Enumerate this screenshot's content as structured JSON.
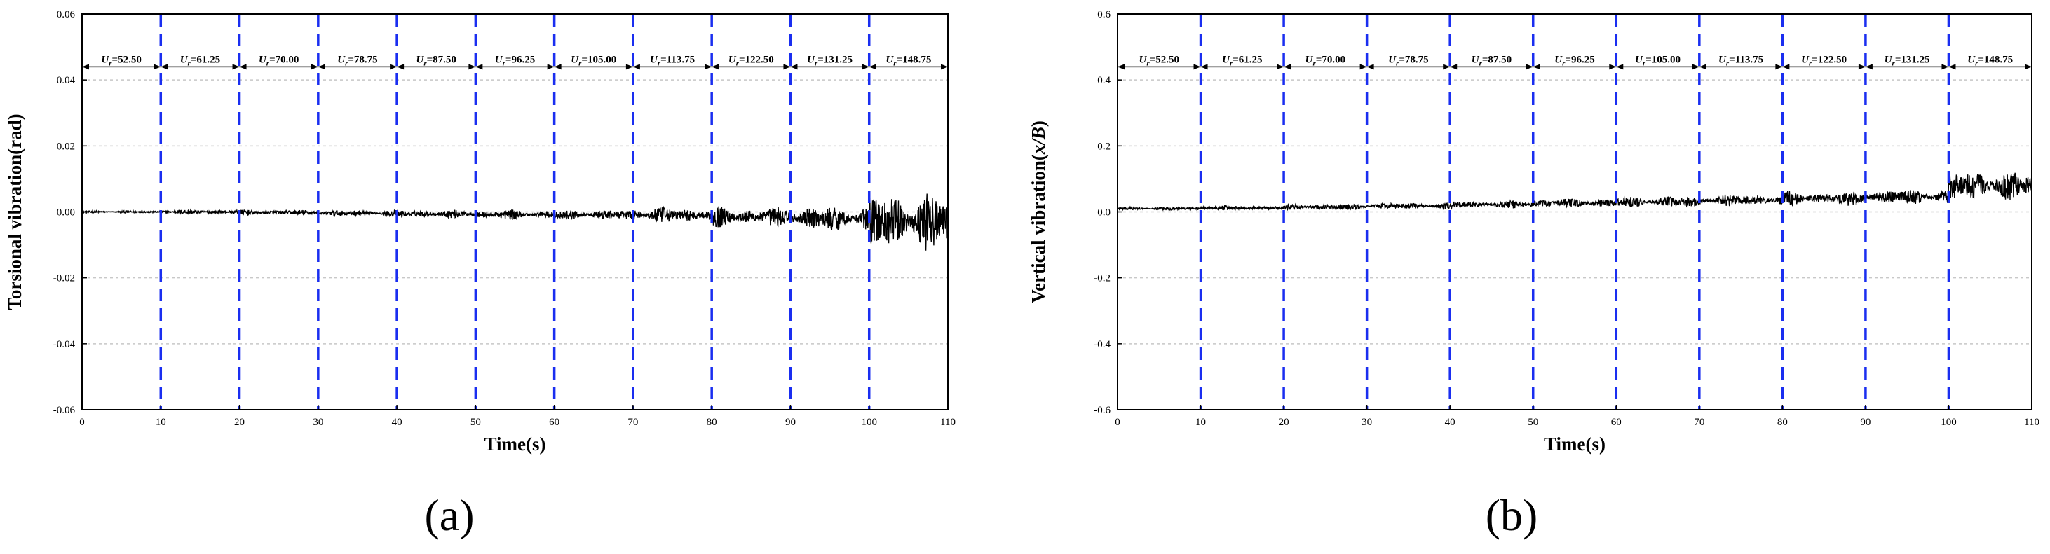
{
  "chart_data": [
    {
      "type": "line",
      "panel_label": "(a)",
      "xlabel": "Time(s)",
      "ylabel": "Torsional vibration(rad)",
      "xlim": [
        0,
        110
      ],
      "ylim": [
        -0.06,
        0.06
      ],
      "x_ticks": [
        0,
        10,
        20,
        30,
        40,
        50,
        60,
        70,
        80,
        90,
        100,
        110
      ],
      "y_ticks": [
        -0.06,
        -0.04,
        -0.02,
        0.0,
        0.02,
        0.04,
        0.06
      ],
      "y_tick_labels": [
        "-0.06",
        "-0.04",
        "-0.02",
        "0.00",
        "0.02",
        "0.04",
        "0.06"
      ],
      "y_gridlines": true,
      "segment_boundaries": [
        10,
        20,
        30,
        40,
        50,
        60,
        70,
        80,
        90,
        100
      ],
      "segment_label_symbol": "U",
      "segment_label_subscript": "r",
      "segment_label_values": [
        "52.50",
        "61.25",
        "70.00",
        "78.75",
        "87.50",
        "96.25",
        "105.00",
        "113.75",
        "122.50",
        "131.25",
        "148.75"
      ],
      "segment_label_level": 0.044,
      "series": [
        {
          "mean": [
            0.0,
            0.0,
            -0.0002,
            -0.0004,
            -0.0006,
            -0.0008,
            -0.0009,
            -0.001,
            -0.0015,
            -0.002,
            -0.003
          ],
          "amplitude": [
            0.0003,
            0.0006,
            0.0007,
            0.0008,
            0.001,
            0.0012,
            0.0013,
            0.002,
            0.0025,
            0.0033,
            0.0075
          ]
        }
      ]
    },
    {
      "type": "line",
      "panel_label": "(b)",
      "xlabel": "Time(s)",
      "ylabel_prefix": "Vertical vibration(",
      "ylabel_var": "x/B",
      "ylabel_suffix": ")",
      "xlim": [
        0,
        110
      ],
      "ylim": [
        -0.6,
        0.6
      ],
      "x_ticks": [
        0,
        10,
        20,
        30,
        40,
        50,
        60,
        70,
        80,
        90,
        100,
        110
      ],
      "y_ticks": [
        -0.6,
        -0.4,
        -0.2,
        0.0,
        0.2,
        0.4,
        0.6
      ],
      "y_tick_labels": [
        "-0.6",
        "-0.4",
        "-0.2",
        "0.0",
        "0.2",
        "0.4",
        "0.6"
      ],
      "y_gridlines": true,
      "segment_boundaries": [
        10,
        20,
        30,
        40,
        50,
        60,
        70,
        80,
        90,
        100
      ],
      "segment_label_symbol": "U",
      "segment_label_subscript": "r",
      "segment_label_values": [
        "52.50",
        "61.25",
        "70.00",
        "78.75",
        "87.50",
        "96.25",
        "105.00",
        "113.75",
        "122.50",
        "131.25",
        "148.75"
      ],
      "segment_label_level": 0.44,
      "series": [
        {
          "mean": [
            0.01,
            0.012,
            0.015,
            0.018,
            0.022,
            0.026,
            0.03,
            0.035,
            0.04,
            0.045,
            0.08
          ],
          "amplitude": [
            0.004,
            0.006,
            0.007,
            0.008,
            0.01,
            0.012,
            0.014,
            0.016,
            0.018,
            0.02,
            0.04
          ]
        }
      ]
    }
  ]
}
